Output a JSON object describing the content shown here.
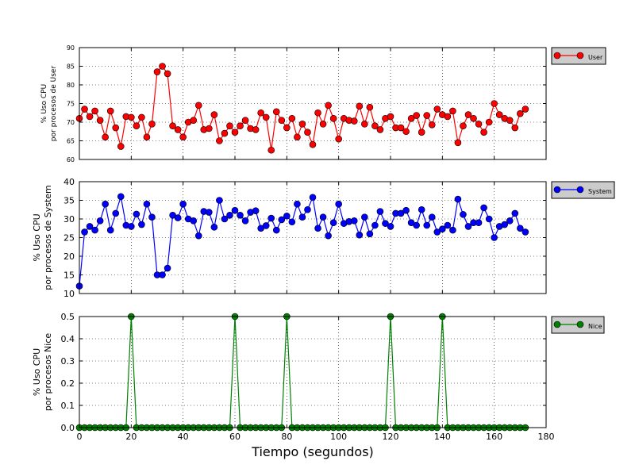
{
  "chart_data": [
    {
      "type": "line",
      "series": [
        {
          "name": "User",
          "color": "#ff0000",
          "x": [
            0,
            2,
            4,
            6,
            8,
            10,
            12,
            14,
            16,
            18,
            20,
            22,
            24,
            26,
            28,
            30,
            32,
            34,
            36,
            38,
            40,
            42,
            44,
            46,
            48,
            50,
            52,
            54,
            56,
            58,
            60,
            62,
            64,
            66,
            68,
            70,
            72,
            74,
            76,
            78,
            80,
            82,
            84,
            86,
            88,
            90,
            92,
            94,
            96,
            98,
            100,
            102,
            104,
            106,
            108,
            110,
            112,
            114,
            116,
            118,
            120,
            122,
            124,
            126,
            128,
            130,
            132,
            134,
            136,
            138,
            140,
            142,
            144,
            146,
            148,
            150,
            152,
            154,
            156,
            158,
            160,
            162,
            164,
            166,
            168,
            170,
            172
          ],
          "values": [
            71,
            73.5,
            71.5,
            73,
            70.5,
            66,
            73,
            68.5,
            63.5,
            71.5,
            71.3,
            69,
            71.3,
            66,
            69.5,
            83.5,
            85,
            83,
            69,
            68,
            66,
            70,
            70.5,
            74.5,
            68,
            68.3,
            72,
            65,
            67,
            69,
            67.3,
            69,
            70.5,
            68.3,
            68,
            72.5,
            71.3,
            62.5,
            72.8,
            70.5,
            68.5,
            71,
            66,
            69.5,
            67.3,
            64,
            72.5,
            69.5,
            74.5,
            71,
            65.5,
            71,
            70.5,
            70.3,
            74.3,
            69.5,
            74,
            69,
            68,
            71,
            71.5,
            68.5,
            68.5,
            67.5,
            71,
            71.8,
            67.3,
            71.8,
            69.3,
            73.5,
            72,
            71.5,
            73,
            64.5,
            69,
            72,
            71,
            69.5,
            67.3,
            70,
            75,
            72,
            71,
            70.5,
            68.5,
            72.3,
            73.5
          ]
        }
      ],
      "ylabel": "% Uso CPU\npor procesos de User",
      "ylim": [
        60,
        90
      ],
      "yticks": [
        60,
        65,
        70,
        75,
        80,
        85,
        90
      ],
      "xlim": [
        0,
        180
      ],
      "grid": true,
      "legend": "right"
    },
    {
      "type": "line",
      "series": [
        {
          "name": "System",
          "color": "#0000ff",
          "x": [
            0,
            2,
            4,
            6,
            8,
            10,
            12,
            14,
            16,
            18,
            20,
            22,
            24,
            26,
            28,
            30,
            32,
            34,
            36,
            38,
            40,
            42,
            44,
            46,
            48,
            50,
            52,
            54,
            56,
            58,
            60,
            62,
            64,
            66,
            68,
            70,
            72,
            74,
            76,
            78,
            80,
            82,
            84,
            86,
            88,
            90,
            92,
            94,
            96,
            98,
            100,
            102,
            104,
            106,
            108,
            110,
            112,
            114,
            116,
            118,
            120,
            122,
            124,
            126,
            128,
            130,
            132,
            134,
            136,
            138,
            140,
            142,
            144,
            146,
            148,
            150,
            152,
            154,
            156,
            158,
            160,
            162,
            164,
            166,
            168,
            170,
            172
          ],
          "values": [
            12,
            26.5,
            28,
            27,
            29.5,
            34,
            27,
            31.5,
            36,
            28.3,
            28,
            31.3,
            28.5,
            34,
            30.5,
            15,
            15,
            16.8,
            31,
            30.3,
            34,
            30,
            29.5,
            25.5,
            32,
            31.8,
            27.8,
            35,
            30,
            31,
            32.3,
            31,
            29.5,
            31.8,
            32.2,
            27.5,
            28.2,
            30.2,
            27,
            29.8,
            30.8,
            29.2,
            34,
            30.5,
            32.5,
            35.8,
            27.5,
            30.5,
            25.5,
            29,
            34,
            28.8,
            29.3,
            29.5,
            25.7,
            30.5,
            26,
            28.3,
            32,
            28.8,
            28,
            31.5,
            31.5,
            32.3,
            29,
            28.3,
            32.5,
            28.3,
            30.5,
            26.5,
            27.3,
            28.3,
            27,
            35.3,
            31.2,
            28,
            29,
            29,
            33,
            30,
            25,
            28,
            28.5,
            29.5,
            31.5,
            27.5,
            26.5
          ]
        }
      ],
      "ylabel": "% Uso CPU\npor procesos de System",
      "ylim": [
        10,
        40
      ],
      "yticks": [
        10,
        15,
        20,
        25,
        30,
        35,
        40
      ],
      "xlim": [
        0,
        180
      ],
      "grid": true,
      "legend": "right"
    },
    {
      "type": "line",
      "series": [
        {
          "name": "Nice",
          "color": "#008000",
          "x": [
            0,
            2,
            4,
            6,
            8,
            10,
            12,
            14,
            16,
            18,
            20,
            22,
            24,
            26,
            28,
            30,
            32,
            34,
            36,
            38,
            40,
            42,
            44,
            46,
            48,
            50,
            52,
            54,
            56,
            58,
            60,
            62,
            64,
            66,
            68,
            70,
            72,
            74,
            76,
            78,
            80,
            82,
            84,
            86,
            88,
            90,
            92,
            94,
            96,
            98,
            100,
            102,
            104,
            106,
            108,
            110,
            112,
            114,
            116,
            118,
            120,
            122,
            124,
            126,
            128,
            130,
            132,
            134,
            136,
            138,
            140,
            142,
            144,
            146,
            148,
            150,
            152,
            154,
            156,
            158,
            160,
            162,
            164,
            166,
            168,
            170,
            172
          ],
          "values": [
            0,
            0,
            0,
            0,
            0,
            0,
            0,
            0,
            0,
            0,
            0.5,
            0,
            0,
            0,
            0,
            0,
            0,
            0,
            0,
            0,
            0,
            0,
            0,
            0,
            0,
            0,
            0,
            0,
            0,
            0,
            0.5,
            0,
            0,
            0,
            0,
            0,
            0,
            0,
            0,
            0,
            0.5,
            0,
            0,
            0,
            0,
            0,
            0,
            0,
            0,
            0,
            0,
            0,
            0,
            0,
            0,
            0,
            0,
            0,
            0,
            0,
            0.5,
            0,
            0,
            0,
            0,
            0,
            0,
            0,
            0,
            0,
            0.5,
            0,
            0,
            0,
            0,
            0,
            0,
            0,
            0,
            0,
            0,
            0,
            0,
            0,
            0,
            0,
            0
          ]
        }
      ],
      "ylabel": "% Uso CPU\npor procesos Nice",
      "ylim": [
        0,
        0.5
      ],
      "yticks": [
        0.0,
        0.1,
        0.2,
        0.3,
        0.4,
        0.5
      ],
      "xlabel": "Tiempo (segundos)",
      "xlim": [
        0,
        180
      ],
      "xticks": [
        0,
        20,
        40,
        60,
        80,
        100,
        120,
        140,
        160,
        180
      ],
      "grid": true,
      "legend": "right"
    }
  ]
}
